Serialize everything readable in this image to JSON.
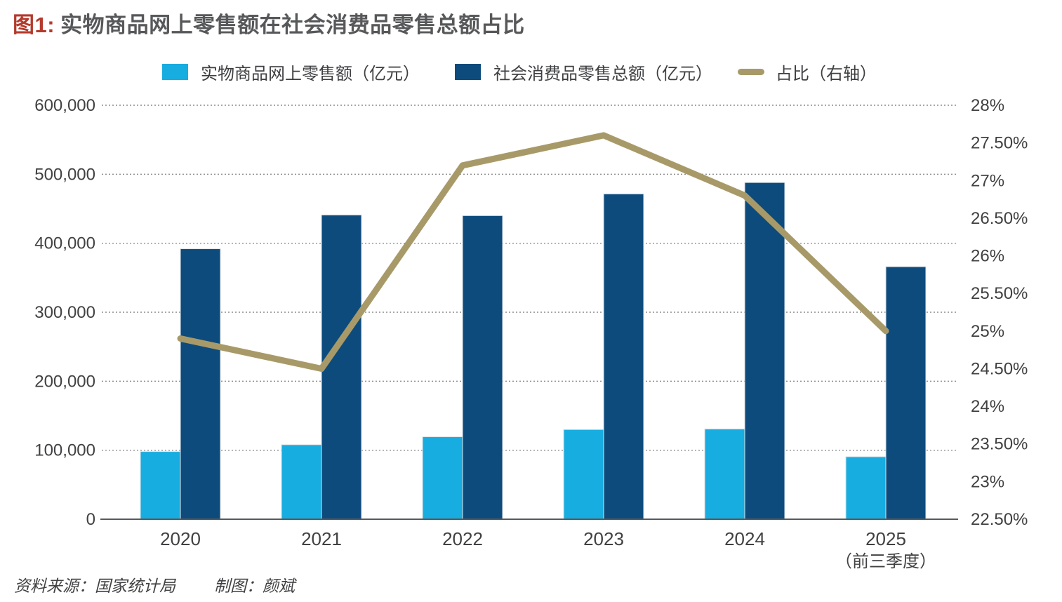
{
  "title": {
    "prefix": "图1:",
    "text": "实物商品网上零售额在社会消费品零售总额占比"
  },
  "legend": [
    {
      "label": "实物商品网上零售额（亿元）",
      "marker": "square",
      "color": "#17ade0"
    },
    {
      "label": "社会消费品零售总额（亿元）",
      "marker": "square",
      "color": "#0d4b7d"
    },
    {
      "label": "占比（右轴）",
      "marker": "line-dash",
      "color": "#a89a68"
    }
  ],
  "footer": {
    "source": "资料来源：国家统计局",
    "credit": "制图：颜斌"
  },
  "colors": {
    "title_prefix_red": "#b43a2c",
    "title_gray": "#57585a",
    "bar_light_blue": "#17ade0",
    "bar_dark_blue": "#0d4b7d",
    "ratio_line_khaki": "#a89a68",
    "gridline_gray": "#8c8c8c",
    "axis_gray": "#58595b",
    "tick_text": "#414042"
  },
  "chart_data": {
    "type": "bar",
    "subtype": "grouped bars with secondary-axis line",
    "title": "图1: 实物商品网上零售额在社会消费品零售总额占比",
    "categories": [
      "2020",
      "2021",
      "2022",
      "2023",
      "2024",
      "2025"
    ],
    "category_sublabels": [
      "",
      "",
      "",
      "",
      "",
      "（前三季度）"
    ],
    "series": [
      {
        "name": "实物商品网上零售额（亿元）",
        "type": "bar",
        "axis": "left",
        "color": "#17ade0",
        "values": [
          98000,
          108000,
          119500,
          130000,
          130800,
          90600
        ]
      },
      {
        "name": "社会消费品零售总额（亿元）",
        "type": "bar",
        "axis": "left",
        "color": "#0d4b7d",
        "values": [
          392000,
          441000,
          440000,
          471500,
          488000,
          366000
        ]
      },
      {
        "name": "占比（右轴）",
        "type": "line",
        "axis": "right",
        "color": "#a89a68",
        "values": [
          24.9,
          24.5,
          27.2,
          27.6,
          26.8,
          25.0
        ]
      }
    ],
    "left_axis": {
      "min": 0,
      "max": 600000,
      "tick_step": 100000,
      "ticks": [
        "600,000",
        "500,000",
        "400,000",
        "300,000",
        "200,000",
        "100,000",
        "0"
      ]
    },
    "right_axis": {
      "min": 22.5,
      "max": 28,
      "tick_step": 0.5,
      "ticks": [
        "28%",
        "27.50%",
        "27%",
        "26.50%",
        "26%",
        "25.50%",
        "25%",
        "24.50%",
        "24%",
        "23.50%",
        "23%",
        "22.50%"
      ]
    },
    "grid": "horizontal dotted lines at left-axis ticks",
    "legend_position": "top center"
  }
}
